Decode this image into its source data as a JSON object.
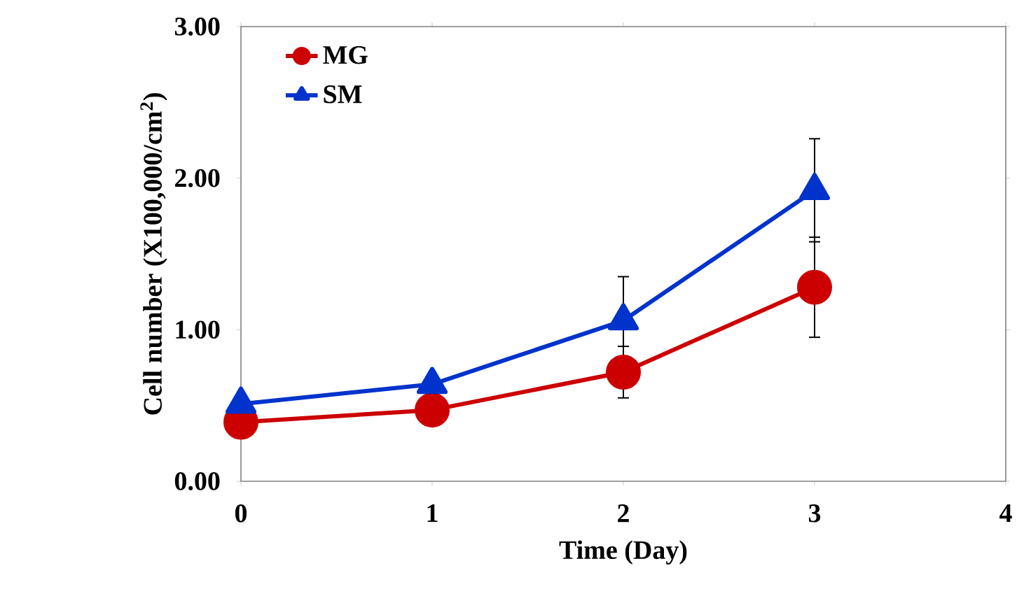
{
  "chart_data": {
    "type": "line",
    "xlabel": "Time (Day)",
    "ylabel": "Cell number (X100,000/cm$^{2}$)",
    "x": [
      0,
      1,
      2,
      3
    ],
    "series": [
      {
        "name": "MG",
        "color": "#cc0000",
        "marker": "circle",
        "values": [
          0.39,
          0.47,
          0.72,
          1.28
        ],
        "errors": [
          null,
          null,
          0.17,
          0.33
        ]
      },
      {
        "name": "SM",
        "color": "#0033cc",
        "marker": "triangle",
        "values": [
          0.51,
          0.64,
          1.06,
          1.92
        ],
        "errors": [
          null,
          null,
          0.29,
          0.34
        ]
      }
    ],
    "xlim": [
      0,
      4
    ],
    "xticks": [
      0,
      1,
      2,
      3,
      4
    ],
    "ylim": [
      0,
      3
    ],
    "yticks": [
      {
        "value": 0,
        "label": "0.00"
      },
      {
        "value": 1,
        "label": "1.00"
      },
      {
        "value": 2,
        "label": "2.00"
      },
      {
        "value": 3,
        "label": "3.00"
      }
    ],
    "grid": false,
    "legend": "top left",
    "line_style": "solid"
  }
}
